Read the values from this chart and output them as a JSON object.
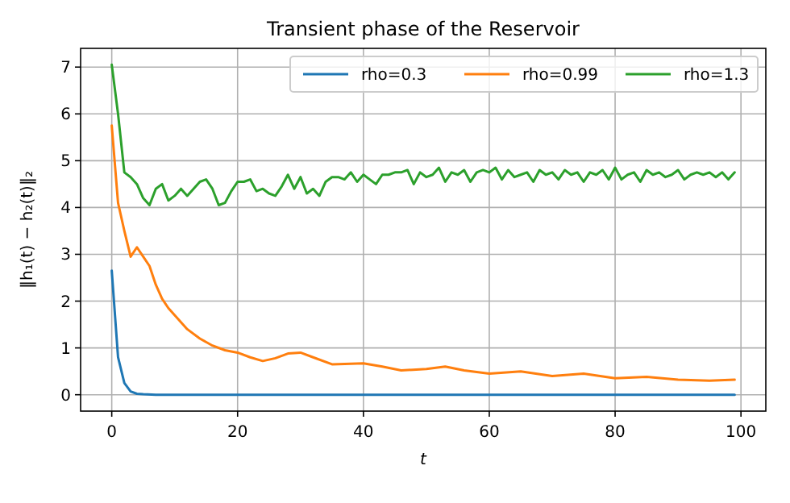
{
  "chart_data": {
    "type": "line",
    "title": "Transient phase of the Reservoir",
    "xlabel": "t",
    "ylabel": "‖h₁(t) − h₂(t)‖₂",
    "xlim": [
      -4.95,
      103.95
    ],
    "ylim": [
      -0.35,
      7.4
    ],
    "xticks": [
      0,
      20,
      40,
      60,
      80,
      100
    ],
    "yticks": [
      0,
      1,
      2,
      3,
      4,
      5,
      6,
      7
    ],
    "grid": true,
    "legend": "top right",
    "series": [
      {
        "name": "rho=0.3",
        "color": "#1f77b4",
        "x": [
          0,
          1,
          2,
          3,
          4,
          5,
          7,
          10,
          20,
          40,
          60,
          80,
          99
        ],
        "values": [
          2.65,
          0.8,
          0.25,
          0.07,
          0.02,
          0.01,
          0,
          0,
          0,
          0,
          0,
          0,
          0
        ]
      },
      {
        "name": "rho=0.99",
        "color": "#ff7f0e",
        "x": [
          0,
          1,
          2,
          3,
          4,
          5,
          6,
          7,
          8,
          9,
          10,
          12,
          14,
          16,
          18,
          20,
          22,
          24,
          26,
          28,
          30,
          32,
          35,
          40,
          43,
          46,
          50,
          53,
          56,
          60,
          65,
          70,
          75,
          80,
          85,
          90,
          95,
          99
        ],
        "values": [
          5.75,
          4.1,
          3.5,
          2.95,
          3.15,
          2.95,
          2.75,
          2.35,
          2.05,
          1.85,
          1.7,
          1.4,
          1.2,
          1.05,
          0.95,
          0.9,
          0.8,
          0.72,
          0.78,
          0.88,
          0.9,
          0.8,
          0.65,
          0.67,
          0.6,
          0.52,
          0.55,
          0.6,
          0.52,
          0.45,
          0.5,
          0.4,
          0.45,
          0.35,
          0.38,
          0.32,
          0.3,
          0.32
        ]
      },
      {
        "name": "rho=1.3",
        "color": "#2ca02c",
        "x": [
          0,
          1,
          2,
          3,
          4,
          5,
          6,
          7,
          8,
          9,
          10,
          11,
          12,
          13,
          14,
          15,
          16,
          17,
          18,
          19,
          20,
          21,
          22,
          23,
          24,
          25,
          26,
          27,
          28,
          29,
          30,
          31,
          32,
          33,
          34,
          35,
          36,
          37,
          38,
          39,
          40,
          41,
          42,
          43,
          44,
          45,
          46,
          47,
          48,
          49,
          50,
          51,
          52,
          53,
          54,
          55,
          56,
          57,
          58,
          59,
          60,
          61,
          62,
          63,
          64,
          65,
          66,
          67,
          68,
          69,
          70,
          71,
          72,
          73,
          74,
          75,
          76,
          77,
          78,
          79,
          80,
          81,
          82,
          83,
          84,
          85,
          86,
          87,
          88,
          89,
          90,
          91,
          92,
          93,
          94,
          95,
          96,
          97,
          98,
          99
        ],
        "values": [
          7.05,
          6.0,
          4.75,
          4.65,
          4.5,
          4.2,
          4.05,
          4.4,
          4.5,
          4.15,
          4.25,
          4.4,
          4.25,
          4.4,
          4.55,
          4.6,
          4.4,
          4.05,
          4.1,
          4.35,
          4.55,
          4.55,
          4.6,
          4.35,
          4.4,
          4.3,
          4.25,
          4.45,
          4.7,
          4.4,
          4.65,
          4.3,
          4.4,
          4.25,
          4.55,
          4.65,
          4.65,
          4.6,
          4.75,
          4.55,
          4.7,
          4.6,
          4.5,
          4.7,
          4.7,
          4.75,
          4.75,
          4.8,
          4.5,
          4.75,
          4.65,
          4.7,
          4.85,
          4.55,
          4.75,
          4.7,
          4.8,
          4.55,
          4.75,
          4.8,
          4.75,
          4.85,
          4.6,
          4.8,
          4.65,
          4.7,
          4.75,
          4.55,
          4.8,
          4.7,
          4.75,
          4.6,
          4.8,
          4.7,
          4.75,
          4.55,
          4.75,
          4.7,
          4.8,
          4.6,
          4.85,
          4.6,
          4.7,
          4.75,
          4.55,
          4.8,
          4.7,
          4.75,
          4.65,
          4.7,
          4.8,
          4.6,
          4.7,
          4.75,
          4.7,
          4.75,
          4.65,
          4.75,
          4.6,
          4.75
        ]
      }
    ]
  }
}
